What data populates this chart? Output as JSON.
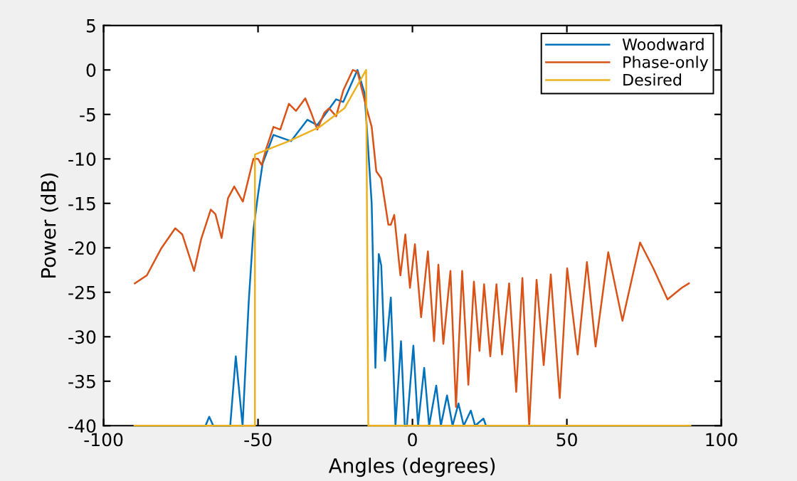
{
  "chart_data": {
    "type": "line",
    "xlabel": "Angles (degrees)",
    "ylabel": "Power (dB)",
    "xlim": [
      -100,
      100
    ],
    "xticks": [
      -100,
      -50,
      0,
      50,
      100
    ],
    "ylim": [
      -40,
      5
    ],
    "yticks": [
      -40,
      -35,
      -30,
      -25,
      -20,
      -15,
      -10,
      -5,
      0,
      5
    ],
    "grid": false,
    "legend": "top right",
    "line_style": "solid",
    "marker": "none",
    "series": [
      {
        "name": "Woodward",
        "color": "#0072bd",
        "x": [
          -90,
          -67,
          -65.8,
          -64.5,
          -59,
          -57.2,
          -55,
          -53,
          -51.5,
          -50,
          -48.5,
          -45,
          -39.3,
          -34,
          -30.8,
          -24.7,
          -22.4,
          -17.8,
          -15.5,
          -13.2,
          -12,
          -10.9,
          -10.1,
          -8.9,
          -7,
          -5.5,
          -3.7,
          -2.5,
          -1.8,
          0.3,
          1.8,
          3.8,
          5.4,
          7.7,
          9.2,
          11.2,
          13,
          14.9,
          16.6,
          18.9,
          20.3,
          23,
          23.8,
          90
        ],
        "values": [
          -40,
          -40,
          -39,
          -40,
          -40,
          -32.2,
          -40,
          -26,
          -18,
          -14,
          -10.5,
          -7.3,
          -8,
          -5.6,
          -6.2,
          -3.3,
          -3.6,
          0,
          -2.6,
          -15,
          -33.5,
          -20.7,
          -22,
          -32.7,
          -25.6,
          -40,
          -30.5,
          -40,
          -40,
          -31,
          -40,
          -33.5,
          -40,
          -35.5,
          -40,
          -36.6,
          -40,
          -37.5,
          -40,
          -38.3,
          -40,
          -39.2,
          -40,
          -40
        ]
      },
      {
        "name": "Phase-only",
        "color": "#d95319",
        "x": [
          -89.9,
          -86,
          -81.4,
          -76.8,
          -74.5,
          -70.7,
          -68.4,
          -65.3,
          -63.8,
          -61.8,
          -59.7,
          -57.7,
          -54.9,
          -51.5,
          -50,
          -48.8,
          -47.4,
          -45,
          -42.8,
          -40,
          -37.7,
          -34.7,
          -32.8,
          -30.8,
          -28.5,
          -27,
          -24.7,
          -22.4,
          -19.3,
          -17.8,
          -15.8,
          -14.7,
          -13.2,
          -11.7,
          -10.1,
          -7.8,
          -7,
          -5.9,
          -3.9,
          -2.3,
          -0.8,
          0.8,
          2.8,
          5,
          7,
          8.4,
          10,
          12.3,
          14.1,
          16.1,
          18.1,
          19.9,
          21.7,
          23.2,
          25.2,
          27.2,
          29,
          31.3,
          33.6,
          35.6,
          37.8,
          40.2,
          42.5,
          44.8,
          47.7,
          50.1,
          53.5,
          56.5,
          59.3,
          63.4,
          68,
          73.7,
          78,
          82.6,
          87.2,
          89.5
        ],
        "values": [
          -24,
          -23.1,
          -20.1,
          -17.8,
          -18.5,
          -22.6,
          -19,
          -15.7,
          -16.2,
          -18.9,
          -14.4,
          -13.1,
          -14.8,
          -10,
          -10,
          -10.7,
          -8.9,
          -6.4,
          -6.7,
          -3.8,
          -4.6,
          -3.2,
          -4.8,
          -6.7,
          -4.8,
          -4.3,
          -5.2,
          -2.3,
          0,
          -0.2,
          -3,
          -4.5,
          -6.4,
          -11.4,
          -12.2,
          -17.4,
          -17.4,
          -16.3,
          -23.1,
          -18.5,
          -24.5,
          -19.6,
          -27.8,
          -20.4,
          -30.5,
          -21.9,
          -30.8,
          -22.6,
          -37.9,
          -22.6,
          -35.4,
          -23.8,
          -31.6,
          -24.1,
          -32.2,
          -24.1,
          -32,
          -24,
          -36.2,
          -23.4,
          -40,
          -23.6,
          -33.2,
          -23,
          -36.9,
          -22.3,
          -32,
          -21.6,
          -31.1,
          -20.5,
          -28.2,
          -19.4,
          -22.3,
          -25.8,
          -24.5,
          -24
        ]
      },
      {
        "name": "Desired",
        "color": "#edb120",
        "x": [
          -90,
          -51,
          -51,
          -40,
          -30,
          -22,
          -15,
          -14.3,
          90
        ],
        "values": [
          -40,
          -40,
          -9.5,
          -8,
          -6.4,
          -4.3,
          0,
          -40,
          -40
        ]
      }
    ]
  }
}
